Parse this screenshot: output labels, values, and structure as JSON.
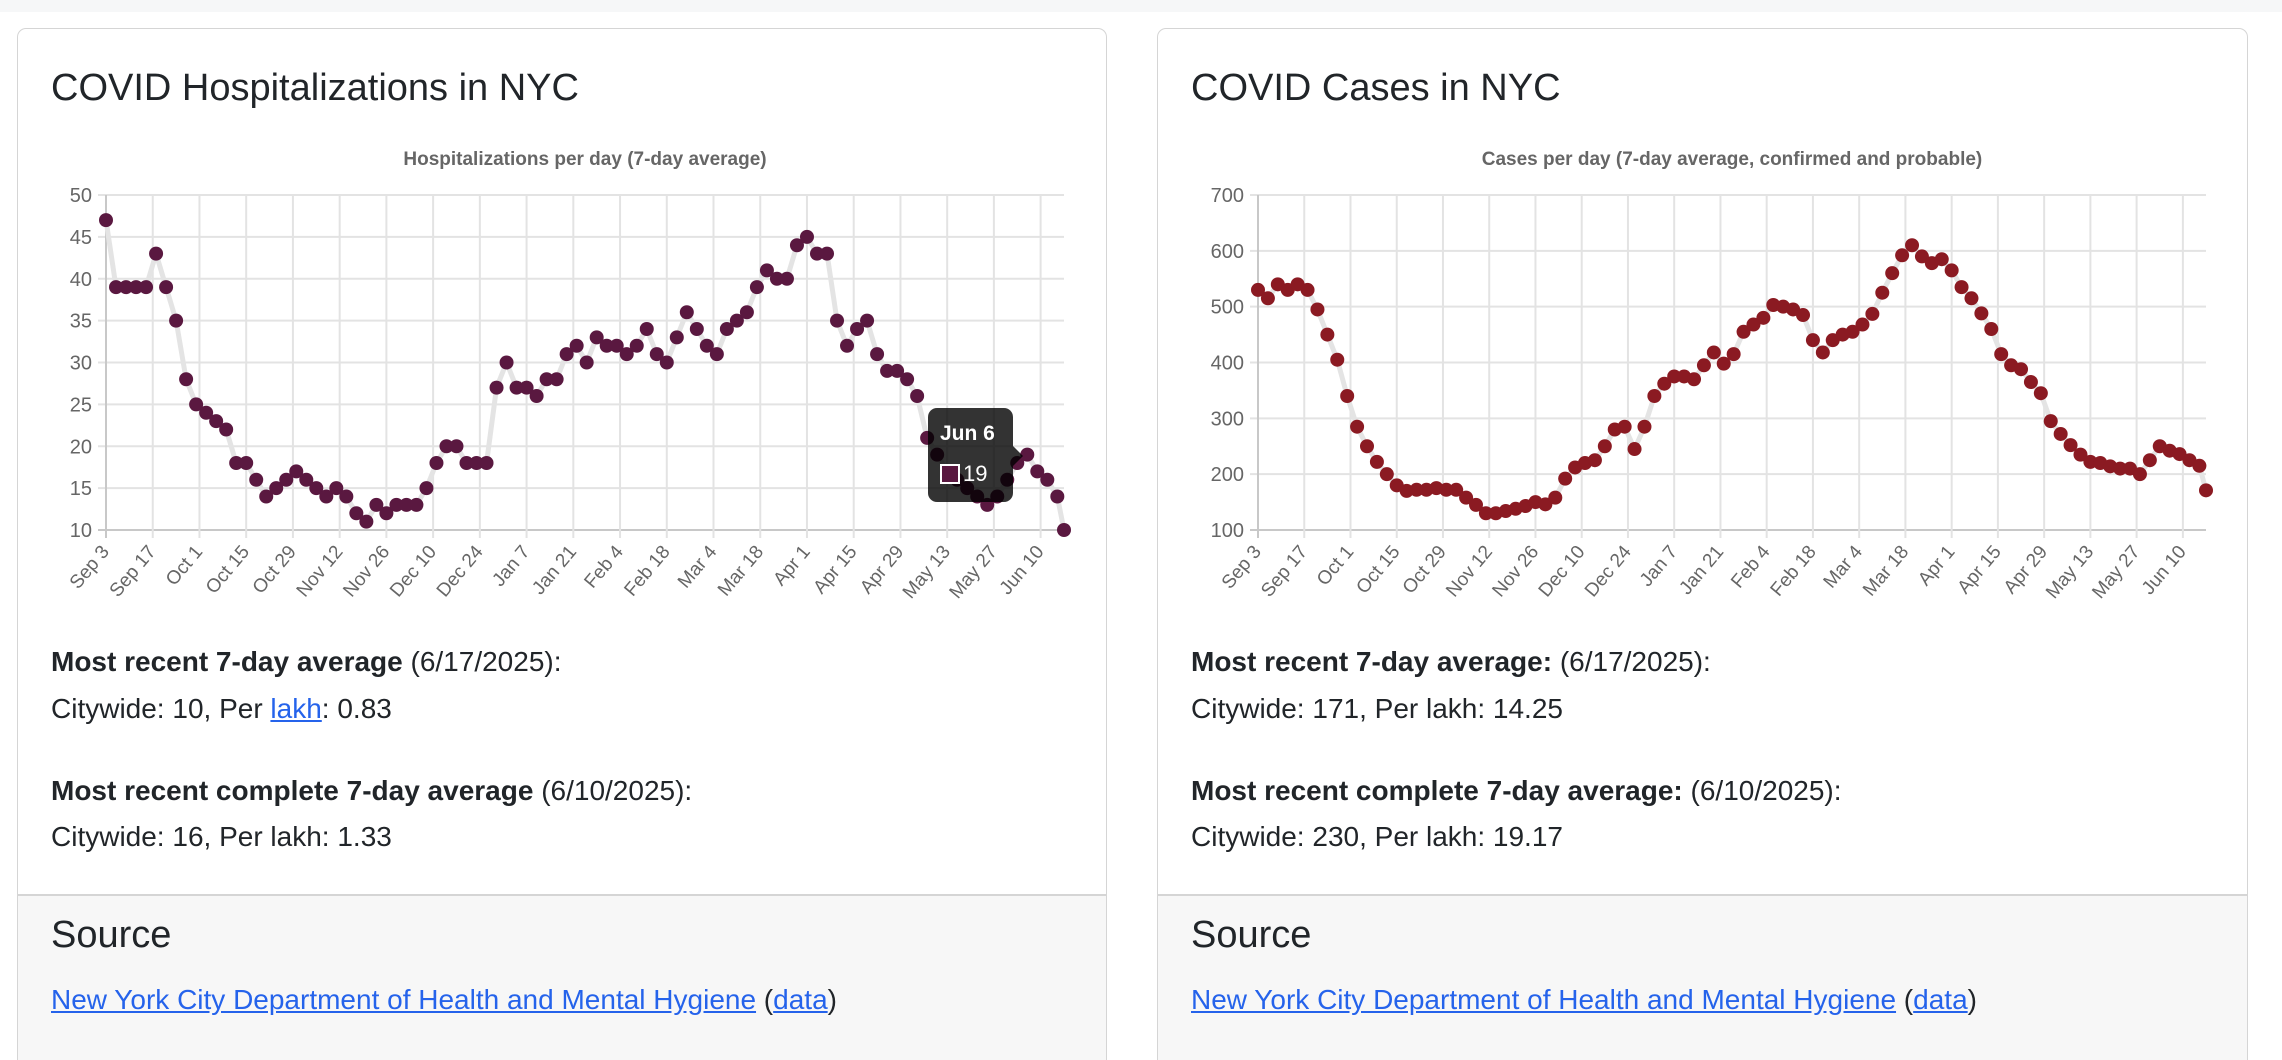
{
  "hospitalizations": {
    "title": "COVID Hospitalizations in NYC",
    "recent": {
      "label": "Most recent 7-day average",
      "date": " (6/17/2025):",
      "line_prefix": "Citywide: 10, Per ",
      "lakh_link": "lakh",
      "line_suffix": ": 0.83"
    },
    "complete": {
      "label": "Most recent complete 7-day average",
      "date": " (6/10/2025):",
      "line": "Citywide: 16, Per lakh: 1.33"
    },
    "tooltip": {
      "title": "Jun 6",
      "value": "19"
    },
    "source": {
      "heading": "Source",
      "link": "New York City Department of Health and Mental Hygiene",
      "open": " (",
      "data_link": "data",
      "close": ")"
    }
  },
  "cases": {
    "title": "COVID Cases in NYC",
    "recent": {
      "label": "Most recent 7-day average:",
      "date": " (6/17/2025):",
      "line": "Citywide: 171, Per lakh: 14.25"
    },
    "complete": {
      "label": "Most recent complete 7-day average:",
      "date": " (6/10/2025):",
      "line": "Citywide: 230, Per lakh: 19.17"
    },
    "source": {
      "heading": "Source",
      "link": "New York City Department of Health and Mental Hygiene",
      "open": " (",
      "data_link": "data",
      "close": ")"
    }
  },
  "chart_data": [
    {
      "type": "scatter",
      "title": "Hospitalizations per day (7-day average)",
      "color": "#5a1840",
      "line_color": "#e4e4e4",
      "ylim": [
        10,
        50
      ],
      "yticks": [
        "50",
        "45",
        "40",
        "35",
        "30",
        "25",
        "20",
        "15",
        "10"
      ],
      "ytick_values": [
        50,
        45,
        40,
        35,
        30,
        25,
        20,
        15,
        10
      ],
      "xtick_labels": [
        "Sep 3",
        "Sep 17",
        "Oct 1",
        "Oct 15",
        "Oct 29",
        "Nov 12",
        "Nov 26",
        "Dec 10",
        "Dec 24",
        "Jan 7",
        "Jan 21",
        "Feb 4",
        "Feb 18",
        "Mar 4",
        "Mar 18",
        "Apr 1",
        "Apr 15",
        "Apr 29",
        "May 13",
        "May 27",
        "Jun 10"
      ],
      "xtick_step_days": 14,
      "day_step": 3,
      "end_day": 287,
      "values": [
        47,
        39,
        39,
        39,
        39,
        43,
        39,
        35,
        28,
        25,
        24,
        23,
        22,
        18,
        18,
        16,
        14,
        15,
        16,
        17,
        16,
        15,
        14,
        15,
        14,
        12,
        11,
        13,
        12,
        13,
        13,
        13,
        15,
        18,
        20,
        20,
        18,
        18,
        18,
        27,
        30,
        27,
        27,
        26,
        28,
        28,
        31,
        32,
        30,
        33,
        32,
        32,
        31,
        32,
        34,
        31,
        30,
        33,
        36,
        34,
        32,
        31,
        34,
        35,
        36,
        39,
        41,
        40,
        40,
        44,
        45,
        43,
        43,
        35,
        32,
        34,
        35,
        31,
        29,
        29,
        28,
        26,
        21,
        19,
        17,
        16,
        15,
        14,
        13,
        14,
        16,
        18,
        19,
        17,
        16,
        14,
        10
      ],
      "highlight": {
        "label": "Jun 6",
        "value": 19
      }
    },
    {
      "type": "scatter",
      "title": "Cases per day (7-day average, confirmed and probable)",
      "color": "#8b1a22",
      "line_color": "#e4e4e4",
      "ylim": [
        100,
        700
      ],
      "yticks": [
        "700",
        "600",
        "500",
        "400",
        "300",
        "200",
        "100"
      ],
      "ytick_values": [
        700,
        600,
        500,
        400,
        300,
        200,
        100
      ],
      "xtick_labels": [
        "Sep 3",
        "Sep 17",
        "Oct 1",
        "Oct 15",
        "Oct 29",
        "Nov 12",
        "Nov 26",
        "Dec 10",
        "Dec 24",
        "Jan 7",
        "Jan 21",
        "Feb 4",
        "Feb 18",
        "Mar 4",
        "Mar 18",
        "Apr 1",
        "Apr 15",
        "Apr 29",
        "May 13",
        "May 27",
        "Jun 10"
      ],
      "xtick_step_days": 14,
      "day_step": 3,
      "end_day": 287,
      "values": [
        530,
        515,
        540,
        530,
        540,
        530,
        495,
        450,
        405,
        340,
        285,
        250,
        222,
        200,
        180,
        170,
        172,
        172,
        175,
        172,
        172,
        158,
        145,
        130,
        130,
        134,
        138,
        143,
        150,
        146,
        158,
        192,
        212,
        220,
        225,
        250,
        280,
        285,
        245,
        285,
        340,
        362,
        375,
        375,
        370,
        395,
        418,
        398,
        415,
        455,
        468,
        480,
        503,
        500,
        495,
        485,
        440,
        418,
        440,
        450,
        455,
        468,
        487,
        525,
        560,
        592,
        610,
        590,
        578,
        585,
        565,
        535,
        515,
        488,
        460,
        415,
        395,
        388,
        365,
        345,
        295,
        272,
        252,
        235,
        222,
        220,
        214,
        210,
        210,
        200,
        225,
        250,
        242,
        236,
        225,
        215,
        171
      ]
    }
  ]
}
